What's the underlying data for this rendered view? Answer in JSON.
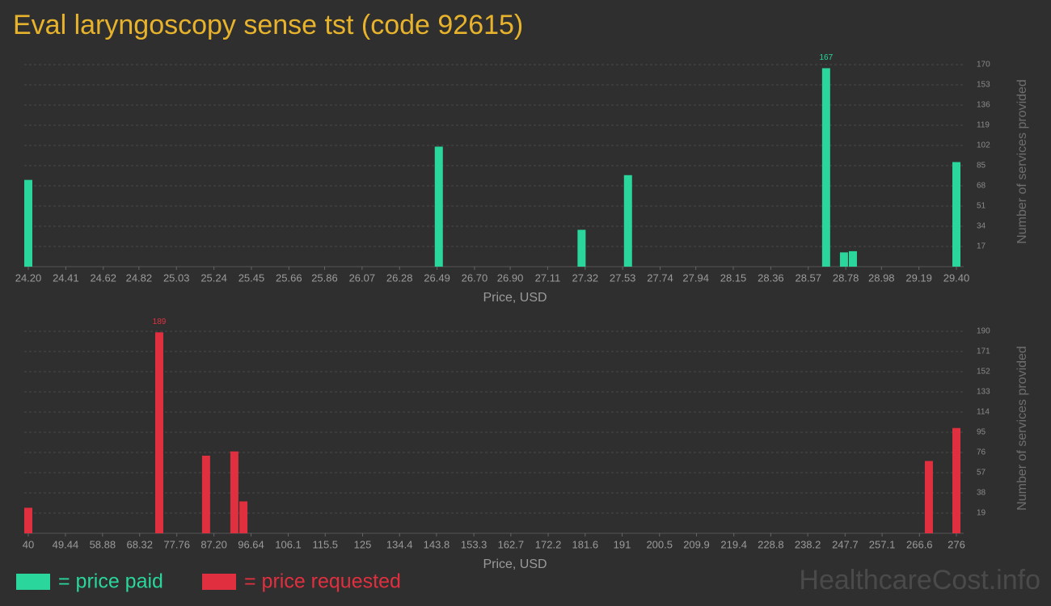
{
  "title": "Eval laryngoscopy sense tst (code 92615)",
  "watermark": "HealthcareCost.info",
  "chart_data": [
    {
      "type": "bar",
      "x_label": "Price, USD",
      "y_label": "Number of services provided",
      "series": [
        {
          "name": "= price paid",
          "color": "#2ad69b",
          "x": [
            24.2,
            26.5,
            27.3,
            27.56,
            28.67,
            28.77,
            28.82,
            29.4
          ],
          "values": [
            73,
            101,
            31,
            77,
            167,
            12,
            13,
            88
          ],
          "value_labels": [
            null,
            null,
            null,
            null,
            "167",
            null,
            null,
            null
          ]
        }
      ],
      "xlim": [
        24.2,
        29.4
      ],
      "xticks": [
        {
          "value": 24.2,
          "label": "24.20"
        },
        24.41,
        24.62,
        24.82,
        25.03,
        25.24,
        25.45,
        25.66,
        25.86,
        26.07,
        26.28,
        26.49,
        {
          "value": 26.7,
          "label": "26.70"
        },
        {
          "value": 26.9,
          "label": "26.90"
        },
        27.11,
        27.32,
        27.53,
        27.74,
        27.94,
        28.15,
        28.36,
        28.57,
        28.78,
        28.98,
        29.19,
        {
          "value": 29.4,
          "label": "29.40"
        }
      ],
      "ylim": [
        0,
        170
      ],
      "yticks": [
        17,
        34,
        51,
        68,
        85,
        102,
        119,
        136,
        153,
        170
      ],
      "grid": true
    },
    {
      "type": "bar",
      "x_label": "Price, USD",
      "y_label": "Number of services provided",
      "series": [
        {
          "name": "= price requested",
          "color": "#e0303f",
          "x": [
            40,
            73.3,
            85.2,
            92.4,
            94.7,
            269,
            276
          ],
          "values": [
            24,
            189,
            73,
            77,
            30,
            68,
            99
          ],
          "value_labels": [
            null,
            "189",
            null,
            null,
            null,
            null,
            null
          ]
        }
      ],
      "xlim": [
        40,
        276
      ],
      "xticks": [
        40,
        49.44,
        58.88,
        68.32,
        77.76,
        {
          "value": 87.2,
          "label": "87.20"
        },
        96.64,
        106.1,
        115.5,
        125,
        134.4,
        143.8,
        153.3,
        162.7,
        172.2,
        181.6,
        191,
        200.5,
        209.9,
        219.4,
        228.8,
        238.2,
        247.7,
        257.1,
        266.6,
        276
      ],
      "ylim": [
        0,
        190
      ],
      "yticks": [
        19,
        38,
        57,
        76,
        95,
        114,
        133,
        152,
        171,
        190
      ],
      "grid": true
    }
  ]
}
